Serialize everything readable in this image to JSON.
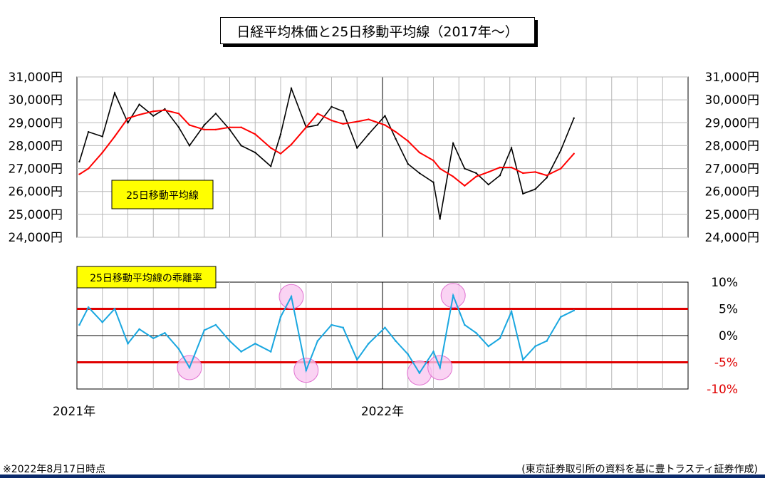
{
  "title": "日経平均株価と25日移動平均線（2017年～）",
  "footnote_left": "※2022年8月17日時点",
  "footnote_right": "(東京証券取引所の資料を基に豊トラスティ証券作成)",
  "chart_data": [
    {
      "type": "line",
      "label_box": "25日移動平均線",
      "y_ticks": [
        "24,000円",
        "25,000円",
        "26,000円",
        "27,000円",
        "28,000円",
        "29,000円",
        "30,000円",
        "31,000円"
      ],
      "ylim": [
        24000,
        31000
      ],
      "x_ticks": [
        "2021年",
        "2022年"
      ],
      "xlim": [
        "2021-01",
        "2022-12"
      ],
      "series": [
        {
          "name": "price",
          "color": "#000000",
          "x": [
            "2021-01-04",
            "2021-01-15",
            "2021-02-01",
            "2021-02-16",
            "2021-03-01",
            "2021-03-15",
            "2021-04-01",
            "2021-04-15",
            "2021-05-01",
            "2021-05-14",
            "2021-06-01",
            "2021-06-15",
            "2021-07-01",
            "2021-07-15",
            "2021-08-01",
            "2021-08-20",
            "2021-09-01",
            "2021-09-14",
            "2021-10-01",
            "2021-10-15",
            "2021-11-01",
            "2021-11-15",
            "2021-12-01",
            "2021-12-15",
            "2022-01-04",
            "2022-01-17",
            "2022-02-01",
            "2022-02-15",
            "2022-03-01",
            "2022-03-09",
            "2022-03-25",
            "2022-04-08",
            "2022-04-22",
            "2022-05-06",
            "2022-05-20",
            "2022-06-03",
            "2022-06-17",
            "2022-07-01",
            "2022-07-15",
            "2022-08-01",
            "2022-08-17"
          ],
          "values": [
            27300,
            28600,
            28400,
            30300,
            29000,
            29800,
            29300,
            29600,
            28800,
            28000,
            28900,
            29400,
            28700,
            28000,
            27700,
            27100,
            28500,
            30500,
            28800,
            28900,
            29700,
            29500,
            27900,
            28500,
            29300,
            28300,
            27200,
            26800,
            26400,
            24800,
            28100,
            27000,
            26800,
            26300,
            26700,
            27900,
            25900,
            26100,
            26600,
            27800,
            29200
          ]
        },
        {
          "name": "ma25",
          "color": "#ff0000",
          "x": [
            "2021-01-04",
            "2021-01-15",
            "2021-02-01",
            "2021-02-16",
            "2021-03-01",
            "2021-03-15",
            "2021-04-01",
            "2021-04-15",
            "2021-05-01",
            "2021-05-14",
            "2021-06-01",
            "2021-06-15",
            "2021-07-01",
            "2021-07-15",
            "2021-08-01",
            "2021-08-20",
            "2021-09-01",
            "2021-09-14",
            "2021-10-01",
            "2021-10-15",
            "2021-11-01",
            "2021-11-15",
            "2021-12-01",
            "2021-12-15",
            "2022-01-04",
            "2022-01-17",
            "2022-02-01",
            "2022-02-15",
            "2022-03-01",
            "2022-03-09",
            "2022-03-25",
            "2022-04-08",
            "2022-04-22",
            "2022-05-06",
            "2022-05-20",
            "2022-06-03",
            "2022-06-17",
            "2022-07-01",
            "2022-07-15",
            "2022-08-01",
            "2022-08-17"
          ],
          "values": [
            26750,
            27000,
            27700,
            28400,
            29200,
            29350,
            29500,
            29550,
            29400,
            28900,
            28700,
            28700,
            28800,
            28800,
            28500,
            27900,
            27650,
            28050,
            28800,
            29400,
            29100,
            28950,
            29050,
            29150,
            28900,
            28600,
            28200,
            27700,
            27350,
            27000,
            26650,
            26250,
            26650,
            26850,
            27050,
            27050,
            26800,
            26850,
            26700,
            27000,
            27650
          ]
        }
      ]
    },
    {
      "type": "line",
      "label_box": "25日移動平均線の乖離率",
      "y_ticks": [
        "10%",
        "5%",
        "0%",
        "-5%",
        "-10%"
      ],
      "ylim": [
        -10,
        10
      ],
      "reference_lines": [
        5,
        -5
      ],
      "series": [
        {
          "name": "deviation",
          "color": "#1aa7e0",
          "x": [
            "2021-01-04",
            "2021-01-15",
            "2021-02-01",
            "2021-02-16",
            "2021-03-01",
            "2021-03-15",
            "2021-04-01",
            "2021-04-15",
            "2021-05-01",
            "2021-05-14",
            "2021-06-01",
            "2021-06-15",
            "2021-07-01",
            "2021-07-15",
            "2021-08-01",
            "2021-08-20",
            "2021-09-01",
            "2021-09-14",
            "2021-10-01",
            "2021-10-15",
            "2021-11-01",
            "2021-11-15",
            "2021-12-01",
            "2021-12-15",
            "2022-01-04",
            "2022-01-17",
            "2022-02-01",
            "2022-02-15",
            "2022-03-01",
            "2022-03-09",
            "2022-03-25",
            "2022-04-08",
            "2022-04-22",
            "2022-05-06",
            "2022-05-20",
            "2022-06-03",
            "2022-06-17",
            "2022-07-01",
            "2022-07-15",
            "2022-08-01",
            "2022-08-17"
          ],
          "values": [
            2.0,
            5.3,
            2.5,
            5.0,
            -1.5,
            1.2,
            -0.5,
            0.5,
            -2.5,
            -6.0,
            1.0,
            2.0,
            -1.0,
            -3.0,
            -1.5,
            -3.0,
            3.5,
            7.3,
            -6.5,
            -1.0,
            2.0,
            1.5,
            -4.5,
            -1.5,
            1.5,
            -1.0,
            -3.5,
            -7.0,
            -3.0,
            -6.0,
            7.5,
            2.0,
            0.5,
            -2.0,
            -0.5,
            4.5,
            -4.5,
            -2.0,
            -1.0,
            3.5,
            4.7
          ]
        }
      ],
      "highlights": [
        {
          "x": "2021-05-14",
          "y": -6.0
        },
        {
          "x": "2021-09-14",
          "y": 7.3
        },
        {
          "x": "2021-10-01",
          "y": -6.5
        },
        {
          "x": "2022-02-15",
          "y": -7.0
        },
        {
          "x": "2022-03-09",
          "y": -6.0
        },
        {
          "x": "2022-03-25",
          "y": 7.5
        }
      ]
    }
  ]
}
